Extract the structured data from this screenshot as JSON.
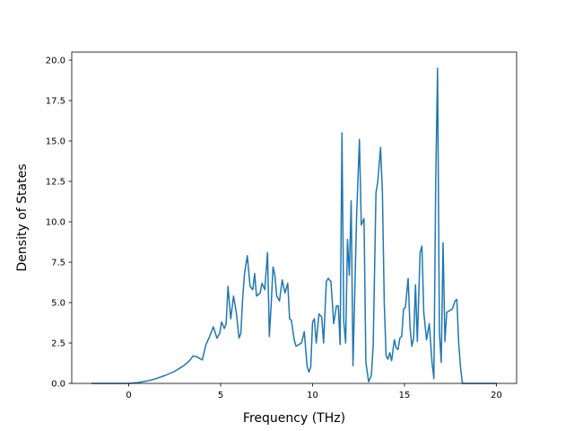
{
  "chart_data": {
    "type": "line",
    "title": "",
    "xlabel": "Frequency (THz)",
    "ylabel": "Density of States",
    "xlim": [
      -3.1,
      21.1
    ],
    "ylim": [
      0,
      20.5
    ],
    "xticks": [
      0,
      5,
      10,
      15,
      20
    ],
    "xtick_labels": [
      "0",
      "5",
      "10",
      "15",
      "20"
    ],
    "yticks": [
      0,
      2.5,
      5,
      7.5,
      10,
      12.5,
      15,
      17.5,
      20
    ],
    "ytick_labels": [
      "0.0",
      "2.5",
      "5.0",
      "7.5",
      "10.0",
      "12.5",
      "15.0",
      "17.5",
      "20.0"
    ],
    "grid": false,
    "legend": "none",
    "line_color": "#1f77b4",
    "series": [
      {
        "x": [
          -2.0,
          -1.0,
          0.0,
          0.5,
          1.0,
          1.5,
          2.0,
          2.5,
          3.0,
          3.3,
          3.5,
          3.7,
          4.0,
          4.2,
          4.4,
          4.6,
          4.8,
          4.95,
          5.05,
          5.2,
          5.3,
          5.4,
          5.55,
          5.7,
          5.85,
          6.0,
          6.1,
          6.2,
          6.3,
          6.45,
          6.6,
          6.75,
          6.85,
          6.95,
          7.05,
          7.15,
          7.25,
          7.4,
          7.55,
          7.65,
          7.75,
          7.85,
          7.95,
          8.05,
          8.2,
          8.35,
          8.5,
          8.65,
          8.75,
          8.85,
          9.0,
          9.1,
          9.25,
          9.4,
          9.55,
          9.7,
          9.8,
          9.9,
          10.0,
          10.1,
          10.2,
          10.35,
          10.5,
          10.6,
          10.75,
          10.85,
          11.0,
          11.15,
          11.3,
          11.4,
          11.5,
          11.6,
          11.7,
          11.8,
          11.9,
          12.0,
          12.1,
          12.2,
          12.3,
          12.4,
          12.55,
          12.65,
          12.8,
          12.9,
          13.05,
          13.2,
          13.3,
          13.45,
          13.55,
          13.7,
          13.8,
          13.9,
          14.0,
          14.1,
          14.2,
          14.3,
          14.45,
          14.55,
          14.65,
          14.75,
          14.85,
          14.95,
          15.05,
          15.2,
          15.3,
          15.4,
          15.5,
          15.6,
          15.7,
          15.85,
          15.95,
          16.05,
          16.2,
          16.35,
          16.5,
          16.6,
          16.7,
          16.8,
          16.9,
          17.0,
          17.1,
          17.2,
          17.3,
          17.45,
          17.6,
          17.75,
          17.85,
          17.95,
          18.05,
          18.15,
          18.3,
          18.5,
          20.0
        ],
        "values": [
          0,
          0,
          0,
          0.05,
          0.15,
          0.3,
          0.5,
          0.75,
          1.1,
          1.4,
          1.7,
          1.65,
          1.45,
          2.4,
          2.9,
          3.5,
          2.8,
          3.1,
          3.8,
          3.4,
          3.7,
          6.0,
          4.0,
          5.4,
          4.4,
          2.8,
          3.1,
          5.3,
          6.8,
          7.9,
          6.0,
          5.8,
          6.8,
          5.4,
          5.5,
          5.6,
          6.2,
          5.8,
          8.1,
          2.9,
          4.9,
          7.2,
          6.7,
          5.4,
          5.1,
          6.4,
          5.6,
          6.2,
          4.0,
          3.9,
          2.7,
          2.3,
          2.4,
          2.5,
          3.2,
          1.1,
          0.7,
          1.0,
          3.8,
          4.0,
          2.5,
          4.3,
          4.1,
          2.5,
          6.3,
          6.5,
          6.3,
          3.7,
          4.8,
          4.8,
          2.4,
          15.5,
          3.8,
          2.5,
          8.9,
          6.7,
          11.3,
          1.1,
          5.8,
          10.5,
          15.1,
          9.8,
          10.2,
          1.3,
          0.1,
          0.5,
          2.4,
          11.8,
          12.5,
          14.6,
          11.8,
          5.0,
          1.7,
          1.5,
          1.9,
          1.4,
          2.7,
          2.2,
          2.1,
          2.8,
          2.9,
          4.6,
          4.7,
          6.5,
          3.5,
          2.3,
          2.8,
          6.1,
          2.6,
          8.1,
          8.5,
          4.4,
          2.7,
          3.7,
          1.3,
          0.3,
          12.5,
          19.5,
          3.2,
          1.3,
          8.7,
          2.6,
          4.4,
          4.5,
          4.6,
          5.1,
          5.2,
          2.5,
          1.0,
          0.0,
          0.0,
          0.0,
          0.0
        ]
      }
    ]
  }
}
